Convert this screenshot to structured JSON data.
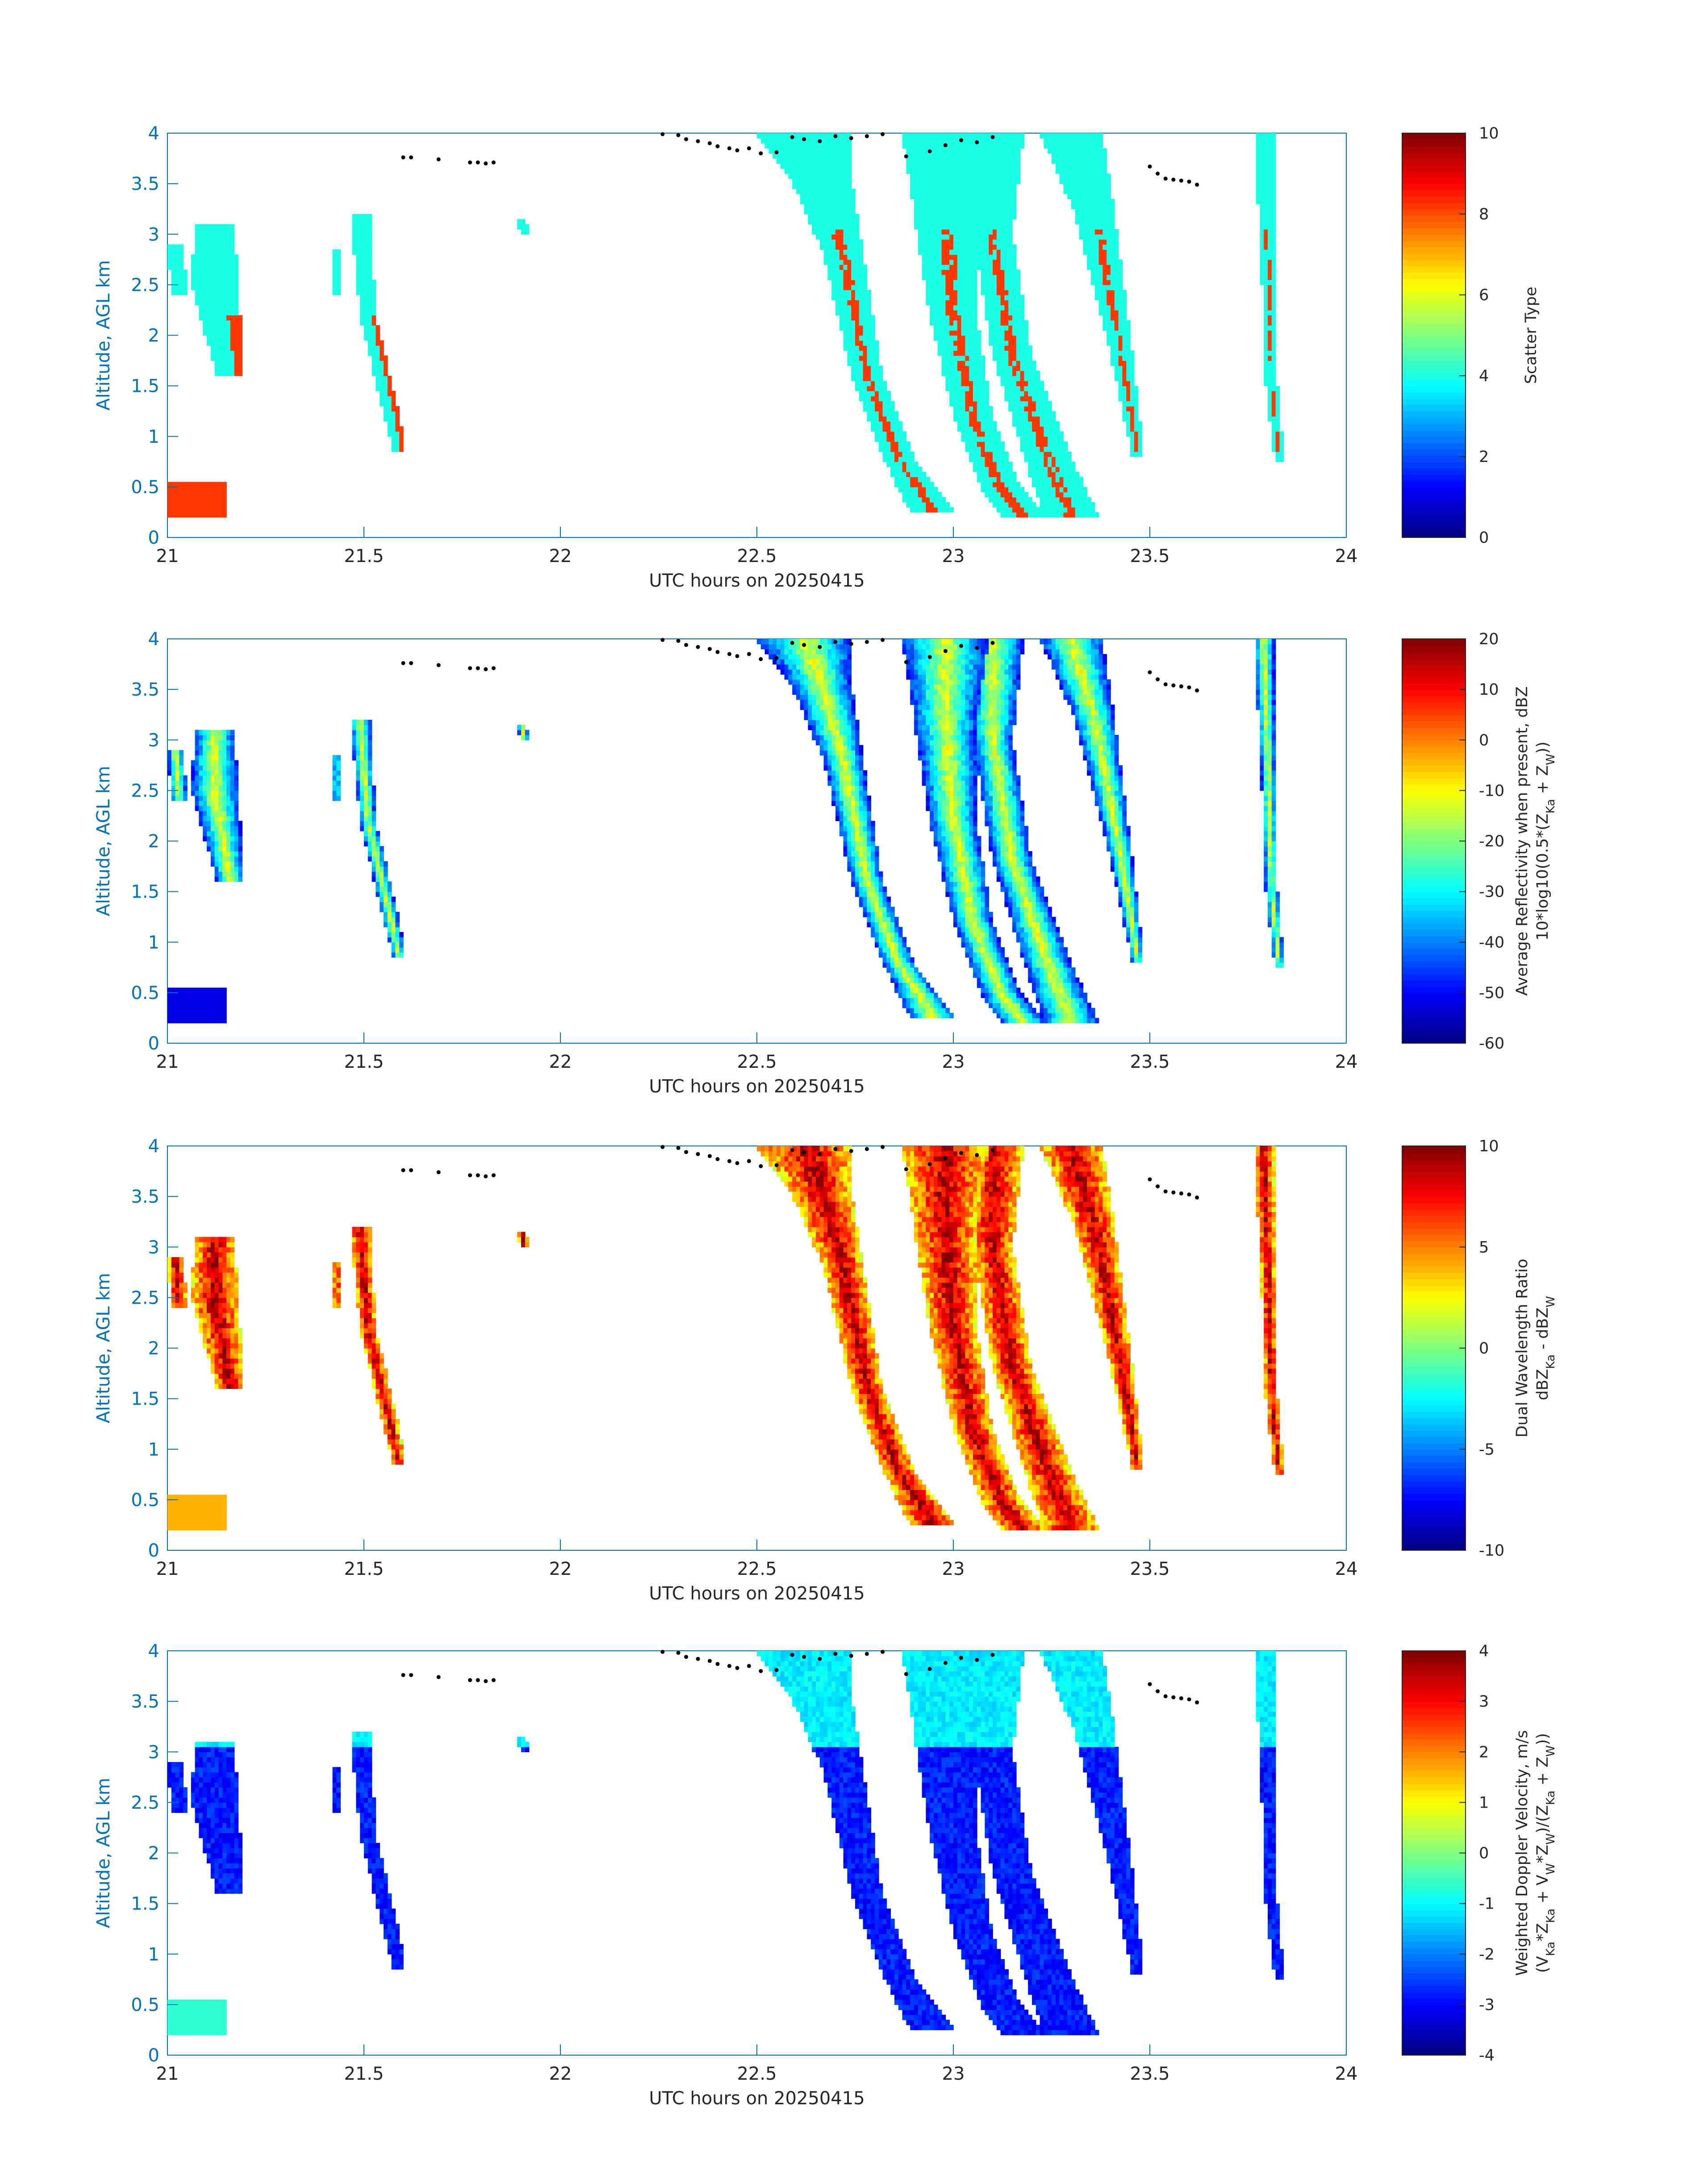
{
  "chart_data": [
    {
      "type": "heatmap",
      "xlabel": "UTC hours on 20250415",
      "ylabel": "Altitude, AGL km",
      "xlim": [
        21,
        24
      ],
      "ylim": [
        0,
        4
      ],
      "xticks": [
        "21",
        "21.5",
        "22",
        "22.5",
        "23",
        "23.5",
        "24"
      ],
      "yticks": [
        "0",
        "0.5",
        "1",
        "1.5",
        "2",
        "2.5",
        "3",
        "3.5",
        "4"
      ],
      "colormap": "jet",
      "colorbar": {
        "label_lines": [
          "Scatter Type"
        ],
        "range": [
          0,
          10
        ],
        "ticks": [
          "0",
          "2",
          "4",
          "6",
          "8",
          "10"
        ]
      },
      "fields": [
        {
          "name": "cloud",
          "value": 4,
          "color": "#33FFD5"
        },
        {
          "name": "precipitation",
          "value": 8.2,
          "color": "#FF4511"
        }
      ]
    },
    {
      "type": "heatmap",
      "xlabel": "UTC hours on 20250415",
      "ylabel": "Altitude, AGL km",
      "xlim": [
        21,
        24
      ],
      "ylim": [
        0,
        4
      ],
      "xticks": [
        "21",
        "21.5",
        "22",
        "22.5",
        "23",
        "23.5",
        "24"
      ],
      "yticks": [
        "0",
        "0.5",
        "1",
        "1.5",
        "2",
        "2.5",
        "3",
        "3.5",
        "4"
      ],
      "colormap": "jet",
      "colorbar": {
        "label_lines": [
          "Average Reflectivity when present, dBZ",
          "10*log10(0.5*(Z",
          "Ka",
          " + Z",
          "W",
          "))"
        ],
        "range": [
          -60,
          20
        ],
        "ticks": [
          "-60",
          "-50",
          "-40",
          "-30",
          "-20",
          "-10",
          "0",
          "10",
          "20"
        ]
      }
    },
    {
      "type": "heatmap",
      "xlabel": "UTC hours on 20250415",
      "ylabel": "Altitude, AGL km",
      "xlim": [
        21,
        24
      ],
      "ylim": [
        0,
        4
      ],
      "xticks": [
        "21",
        "21.5",
        "22",
        "22.5",
        "23",
        "23.5",
        "24"
      ],
      "yticks": [
        "0",
        "0.5",
        "1",
        "1.5",
        "2",
        "2.5",
        "3",
        "3.5",
        "4"
      ],
      "colormap": "jet",
      "colorbar": {
        "label_lines": [
          "Dual Wavelength Ratio",
          "dBZ",
          "Ka",
          " - dBZ",
          "W"
        ],
        "range": [
          -10,
          10
        ],
        "ticks": [
          "-10",
          "-5",
          "0",
          "5",
          "10"
        ]
      }
    },
    {
      "type": "heatmap",
      "xlabel": "UTC hours on 20250415",
      "ylabel": "Altitude, AGL km",
      "xlim": [
        21,
        24
      ],
      "ylim": [
        0,
        4
      ],
      "xticks": [
        "21",
        "21.5",
        "22",
        "22.5",
        "23",
        "23.5",
        "24"
      ],
      "yticks": [
        "0",
        "0.5",
        "1",
        "1.5",
        "2",
        "2.5",
        "3",
        "3.5",
        "4"
      ],
      "colormap": "jet",
      "colorbar": {
        "label_lines": [
          "Weighted Doppler Velocity, m/s",
          "(V",
          "Ka",
          "*Z",
          "Ka",
          " + V",
          "W",
          "*Z",
          "W",
          ")/(Z",
          "Ka",
          " + Z",
          "W",
          "))"
        ],
        "range": [
          -4,
          4
        ],
        "ticks": [
          "-4",
          "-3",
          "-2",
          "-1",
          "0",
          "1",
          "2",
          "3",
          "4"
        ]
      }
    }
  ],
  "cloud_top_dots": {
    "color": "#000000",
    "points": [
      [
        21.6,
        3.76
      ],
      [
        21.62,
        3.76
      ],
      [
        21.69,
        3.74
      ],
      [
        21.77,
        3.71
      ],
      [
        21.79,
        3.71
      ],
      [
        21.81,
        3.7
      ],
      [
        21.83,
        3.71
      ],
      [
        22.26,
        3.99
      ],
      [
        22.3,
        3.98
      ],
      [
        22.32,
        3.94
      ],
      [
        22.35,
        3.92
      ],
      [
        22.38,
        3.9
      ],
      [
        22.4,
        3.87
      ],
      [
        22.43,
        3.85
      ],
      [
        22.45,
        3.83
      ],
      [
        22.48,
        3.85
      ],
      [
        22.51,
        3.8
      ],
      [
        22.55,
        3.81
      ],
      [
        22.59,
        3.96
      ],
      [
        22.62,
        3.94
      ],
      [
        22.66,
        3.92
      ],
      [
        22.7,
        3.97
      ],
      [
        22.74,
        3.95
      ],
      [
        22.78,
        3.97
      ],
      [
        22.82,
        3.99
      ],
      [
        22.88,
        3.77
      ],
      [
        22.94,
        3.82
      ],
      [
        22.98,
        3.88
      ],
      [
        23.02,
        3.93
      ],
      [
        23.06,
        3.91
      ],
      [
        23.1,
        3.96
      ],
      [
        23.5,
        3.67
      ],
      [
        23.52,
        3.6
      ],
      [
        23.54,
        3.55
      ],
      [
        23.56,
        3.54
      ],
      [
        23.58,
        3.53
      ],
      [
        23.6,
        3.52
      ],
      [
        23.62,
        3.49
      ]
    ]
  }
}
